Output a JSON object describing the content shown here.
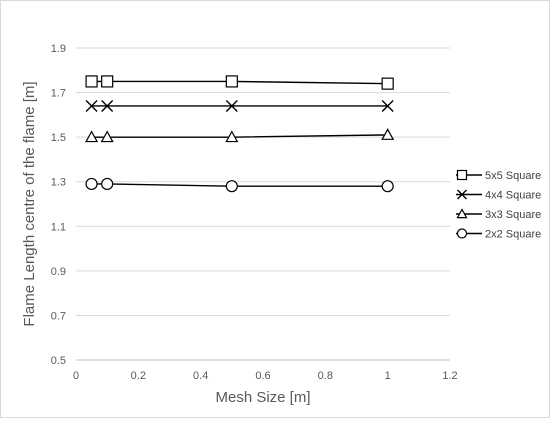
{
  "chart_data": {
    "type": "line",
    "title": "",
    "xlabel": "Mesh Size [m]",
    "ylabel": "Flame Length centre of the flame [m]",
    "xlim": [
      0,
      1.2
    ],
    "ylim": [
      0.5,
      1.9
    ],
    "xticks": [
      0,
      0.2,
      0.4,
      0.6,
      0.8,
      1,
      1.2
    ],
    "yticks": [
      0.5,
      0.7,
      0.9,
      1.1,
      1.3,
      1.5,
      1.7,
      1.9
    ],
    "xtick_labels": [
      "0",
      "0.2",
      "0.4",
      "0.6",
      "0.8",
      "1",
      "1.2"
    ],
    "ytick_labels": [
      "0.5",
      "0.7",
      "0.9",
      "1.1",
      "1.3",
      "1.5",
      "1.7",
      "1.9"
    ],
    "grid": "horizontal",
    "legend_position": "right",
    "x": [
      0.05,
      0.1,
      0.5,
      1
    ],
    "series": [
      {
        "name": "5x5 Square",
        "marker": "square",
        "values": [
          1.75,
          1.75,
          1.75,
          1.74
        ]
      },
      {
        "name": "4x4 Square",
        "marker": "x",
        "values": [
          1.64,
          1.64,
          1.64,
          1.64
        ]
      },
      {
        "name": "3x3 Square",
        "marker": "triangle",
        "values": [
          1.5,
          1.5,
          1.5,
          1.51
        ]
      },
      {
        "name": "2x2 Square",
        "marker": "circle",
        "values": [
          1.29,
          1.29,
          1.28,
          1.28
        ]
      }
    ]
  }
}
